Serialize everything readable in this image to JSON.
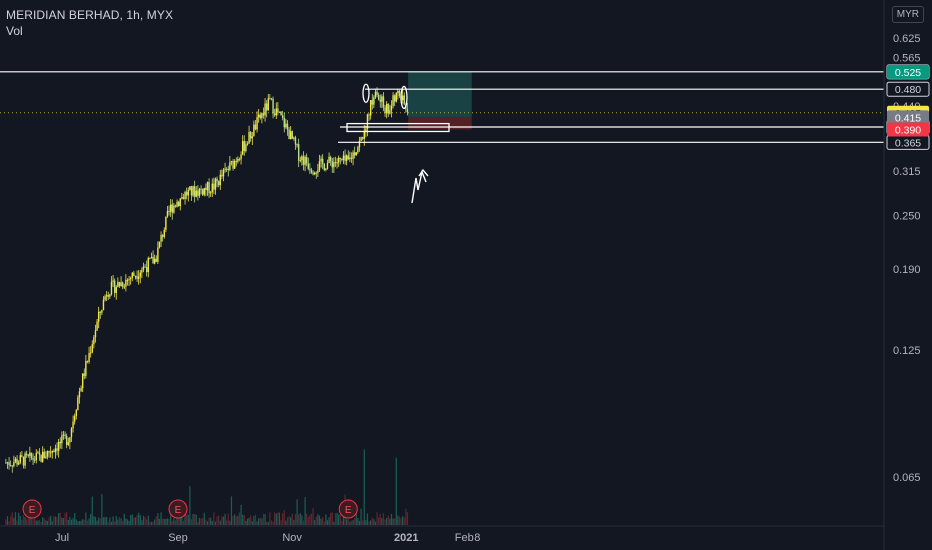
{
  "header": {
    "title": "MERIDIAN BERHAD, 1h, MYX",
    "volume_label": "Vol"
  },
  "currency_button": "MYR",
  "chart_data": {
    "type": "candlestick",
    "x_tick_labels": [
      "Jul",
      "Sep",
      "Nov",
      "2021",
      "Feb",
      "8"
    ],
    "y_tick_labels": [
      "0.625",
      "0.565",
      "0.440",
      "0.315",
      "0.250",
      "0.190",
      "0.125",
      "0.065"
    ],
    "price_path": [
      [
        "2020-06-01",
        0.07
      ],
      [
        "2020-06-20",
        0.072
      ],
      [
        "2020-07-05",
        0.08
      ],
      [
        "2020-07-15",
        0.12
      ],
      [
        "2020-07-25",
        0.17
      ],
      [
        "2020-08-05",
        0.18
      ],
      [
        "2020-08-20",
        0.2
      ],
      [
        "2020-08-28",
        0.26
      ],
      [
        "2020-09-05",
        0.28
      ],
      [
        "2020-09-20",
        0.29
      ],
      [
        "2020-10-01",
        0.33
      ],
      [
        "2020-10-10",
        0.38
      ],
      [
        "2020-10-20",
        0.45
      ],
      [
        "2020-10-28",
        0.4
      ],
      [
        "2020-11-05",
        0.34
      ],
      [
        "2020-11-12",
        0.32
      ],
      [
        "2020-11-22",
        0.33
      ],
      [
        "2020-12-01",
        0.33
      ],
      [
        "2020-12-08",
        0.37
      ],
      [
        "2020-12-15",
        0.47
      ],
      [
        "2020-12-22",
        0.43
      ],
      [
        "2020-12-28",
        0.47
      ],
      [
        "2021-01-02",
        0.42
      ]
    ],
    "earnings_markers": [
      {
        "label": "E",
        "date": "2020-06-15"
      },
      {
        "label": "E",
        "date": "2020-09-01"
      },
      {
        "label": "E",
        "date": "2020-12-01"
      }
    ],
    "horizontal_lines": [
      {
        "value": 0.525,
        "label": "0.525",
        "color": "#ffffff"
      },
      {
        "value": 0.48,
        "label": "0.480",
        "color": "#ffffff"
      },
      {
        "value": 0.395,
        "label": "0.395",
        "color": "#ffffff"
      },
      {
        "value": 0.365,
        "label": "0.365",
        "color": "#ffffff"
      }
    ],
    "position_tool": {
      "entry": 0.415,
      "target": 0.525,
      "stop": 0.39,
      "start": "2021-01-02",
      "end": "2021-02-05",
      "profit_color": "#1b4a4a",
      "loss_color": "#5a2126"
    },
    "price_badges": [
      {
        "value": 0.525,
        "label": "0.525",
        "bg": "#089981",
        "fg": "#ffffff"
      },
      {
        "value": 0.425,
        "label": "0.425",
        "bg": "#f5e642",
        "fg": "#131722"
      },
      {
        "value": 0.415,
        "label": "0.415",
        "bg": "#787b86",
        "fg": "#ffffff"
      },
      {
        "value": 0.39,
        "label": "0.390",
        "bg": "#f23645",
        "fg": "#ffffff"
      }
    ],
    "last_price_line": 0.425,
    "colors": {
      "up": "#089981",
      "down": "#f23645",
      "candle_up": "#f5e642",
      "candle_down": "#b8e08a",
      "volume_spike": "#6a5a3c"
    }
  }
}
